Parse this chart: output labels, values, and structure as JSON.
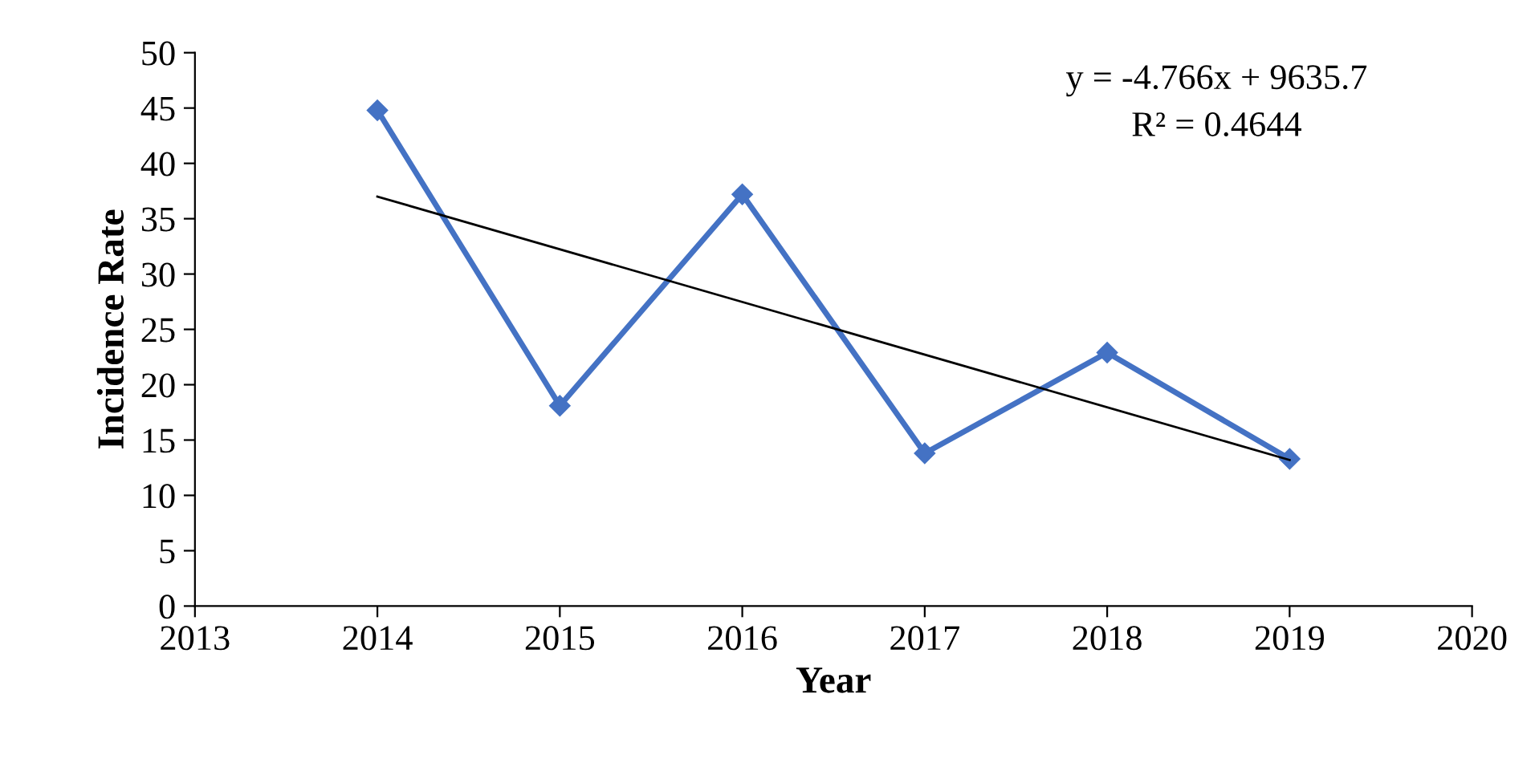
{
  "chart_data": {
    "type": "line",
    "xlabel": "Year",
    "ylabel": "Incidence Rate",
    "series": [
      {
        "color": "#4472c4",
        "x": [
          2014,
          2015,
          2016,
          2017,
          2018,
          2019
        ],
        "values": [
          44.8,
          18.1,
          37.2,
          13.8,
          22.9,
          13.3
        ],
        "marker": "diamond"
      },
      {
        "color": "#000000",
        "x": [
          2014,
          2019
        ],
        "values": [
          37.0,
          13.2
        ],
        "marker": "none"
      }
    ],
    "xlim": [
      2013,
      2020
    ],
    "xticks": [
      2013,
      2014,
      2015,
      2016,
      2017,
      2018,
      2019,
      2020
    ],
    "ylim": [
      0,
      50
    ],
    "yticks": [
      0,
      5,
      10,
      15,
      20,
      25,
      30,
      35,
      40,
      45,
      50
    ],
    "grid": false,
    "legend": false,
    "annotations": [
      "y = -4.766x + 9635.7",
      "R² = 0.4644"
    ]
  }
}
